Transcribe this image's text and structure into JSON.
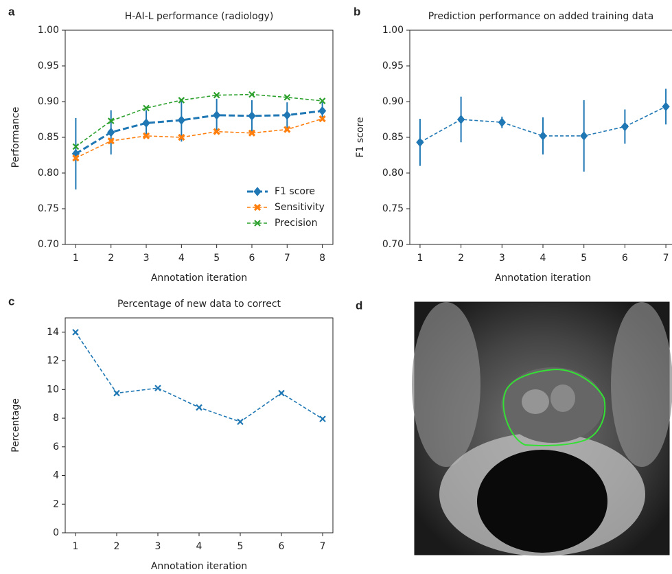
{
  "chart_data": [
    {
      "type": "line",
      "panel": "a",
      "title": "H-AI-L performance (radiology)",
      "xlabel": "Annotation iteration",
      "ylabel": "Performance",
      "x": [
        1,
        2,
        3,
        4,
        5,
        6,
        7,
        8
      ],
      "xlim": [
        0.7,
        8.3
      ],
      "xticks": [
        1,
        2,
        3,
        4,
        5,
        6,
        7,
        8
      ],
      "ylim": [
        0.7,
        1.0
      ],
      "yticks": [
        {
          "value": 0.7,
          "label": "0.70"
        },
        0.75,
        {
          "value": 0.8,
          "label": "0.80"
        },
        0.85,
        {
          "value": 0.9,
          "label": "0.90"
        },
        0.95,
        {
          "value": 1.0,
          "label": "1.00"
        }
      ],
      "legend": "lower right",
      "series": [
        {
          "name": "F1 score",
          "color": "#1f77b4",
          "marker": "D",
          "values": [
            0.827,
            0.857,
            0.87,
            0.874,
            0.881,
            0.88,
            0.881,
            0.887
          ],
          "errors": [
            0.05,
            0.031,
            0.018,
            0.03,
            0.023,
            0.022,
            0.018,
            0.012
          ]
        },
        {
          "name": "Sensitivity",
          "color": "#ff7f0e",
          "marker": "X",
          "values": [
            0.821,
            0.845,
            0.852,
            0.85,
            0.858,
            0.856,
            0.861,
            0.876
          ]
        },
        {
          "name": "Precision",
          "color": "#2ca02c",
          "marker": "x",
          "values": [
            0.837,
            0.873,
            0.891,
            0.902,
            0.909,
            0.91,
            0.906,
            0.901
          ]
        }
      ]
    },
    {
      "type": "line",
      "panel": "b",
      "title": "Prediction performance on added training data",
      "xlabel": "Annotation iteration",
      "ylabel": "F1 score",
      "x": [
        1,
        2,
        3,
        4,
        5,
        6,
        7
      ],
      "xlim": [
        0.75,
        7.25
      ],
      "xticks": [
        1,
        2,
        3,
        4,
        5,
        6,
        7
      ],
      "ylim": [
        0.7,
        1.0
      ],
      "yticks": [
        {
          "value": 0.7,
          "label": "0.70"
        },
        0.75,
        {
          "value": 0.8,
          "label": "0.80"
        },
        0.85,
        {
          "value": 0.9,
          "label": "0.90"
        },
        0.95,
        {
          "value": 1.0,
          "label": "1.00"
        }
      ],
      "series": [
        {
          "color": "#1f77b4",
          "marker": "D",
          "values": [
            0.843,
            0.875,
            0.871,
            0.852,
            0.852,
            0.865,
            0.893
          ],
          "errors": [
            0.033,
            0.032,
            0.008,
            0.026,
            0.05,
            0.024,
            0.025
          ]
        }
      ]
    },
    {
      "type": "line",
      "panel": "c",
      "title": "Percentage of new data to correct",
      "xlabel": "Annotation iteration",
      "ylabel": "Percentage",
      "x": [
        1,
        2,
        3,
        4,
        5,
        6,
        7
      ],
      "xlim": [
        0.75,
        7.25
      ],
      "xticks": [
        1,
        2,
        3,
        4,
        5,
        6,
        7
      ],
      "ylim": [
        0,
        15
      ],
      "yticks": [
        0,
        2,
        4,
        6,
        8,
        10,
        12,
        14
      ],
      "series": [
        {
          "color": "#1f77b4",
          "marker": "x",
          "values": [
            14,
            9.75,
            10.1,
            8.75,
            7.75,
            9.75,
            7.95
          ]
        }
      ]
    }
  ],
  "image_panel": {
    "panel": "d"
  }
}
